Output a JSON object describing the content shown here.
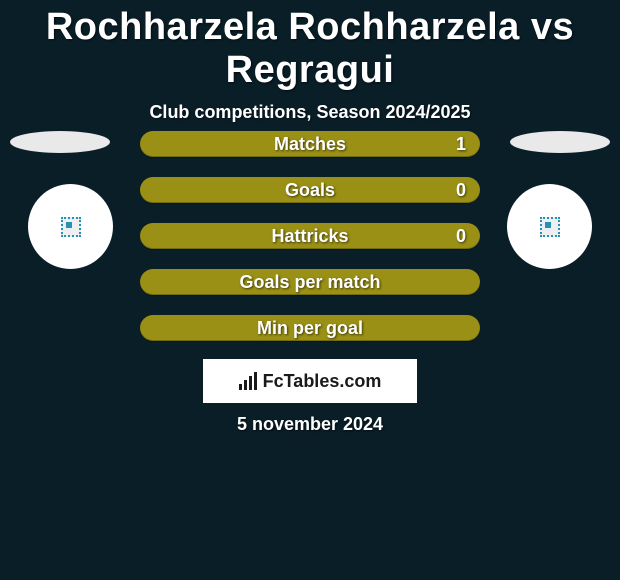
{
  "header": {
    "title": "Rochharzela Rochharzela vs Regragui",
    "subtitle": "Club competitions, Season 2024/2025"
  },
  "colors": {
    "background": "#0a1e28",
    "row_bg": "#9a9015",
    "ellipse_bg": "#e9e9e9",
    "circle_bg": "#ffffff",
    "badge_border": "#2a8fb7",
    "text": "#ffffff",
    "plaque_bg": "#ffffff",
    "plaque_text": "#1a1a1a"
  },
  "stats": [
    {
      "label": "Matches",
      "value": "1"
    },
    {
      "label": "Goals",
      "value": "0"
    },
    {
      "label": "Hattricks",
      "value": "0"
    },
    {
      "label": "Goals per match",
      "value": ""
    },
    {
      "label": "Min per goal",
      "value": ""
    }
  ],
  "plaque": {
    "text": "FcTables.com"
  },
  "date": "5 november 2024"
}
